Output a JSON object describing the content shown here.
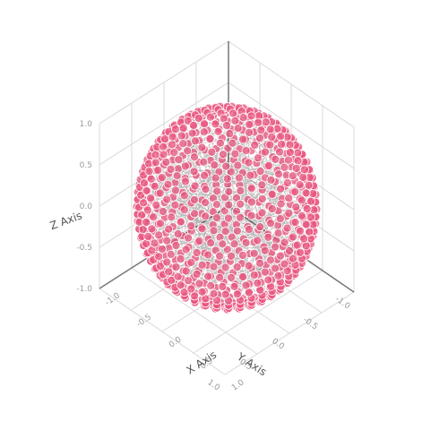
{
  "chart_data": {
    "type": "scatter",
    "subtype": "3d-scatter-with-lines",
    "title": "",
    "axes": {
      "x": {
        "label": "X Axis",
        "range": [
          -1,
          1
        ],
        "ticks": [
          "-1.0",
          "-0.5",
          "0.0",
          "0.5",
          "1.0"
        ]
      },
      "y": {
        "label": "Y Axis",
        "range": [
          -1,
          1
        ],
        "ticks": [
          "-1.0",
          "-0.5",
          "0.0",
          "0.5",
          "1.0"
        ]
      },
      "z": {
        "label": "Z Axis",
        "range": [
          -1,
          1
        ],
        "ticks": [
          "-1.0",
          "-0.5",
          "0.0",
          "0.5",
          "1.0"
        ]
      }
    },
    "grid": true,
    "legend": "none",
    "series": [
      {
        "shape": "unit sphere",
        "radius": 1.0,
        "center": [
          0,
          0,
          0
        ],
        "latitude_rings": 24,
        "points_per_ring_max": 48,
        "marker_color": "#e8557d",
        "marker_edge_color": "#ffffff",
        "marker_opacity": 0.75,
        "line_color": "#333333",
        "line_opacity": 0.35
      }
    ]
  }
}
